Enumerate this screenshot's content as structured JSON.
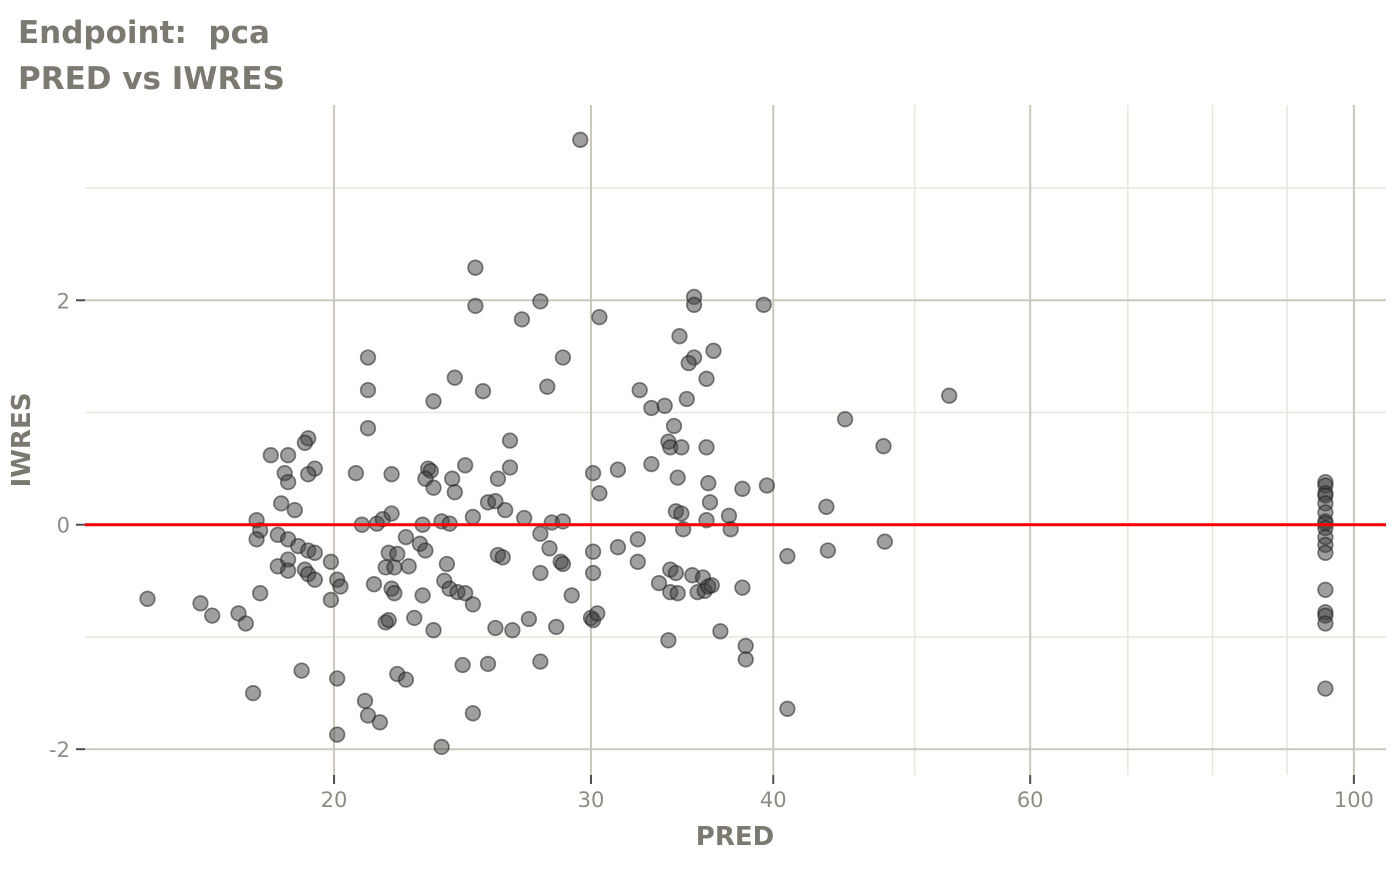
{
  "title": {
    "line1": "Endpoint:  pca",
    "line2": "PRED vs IWRES"
  },
  "colors": {
    "background": "#ffffff",
    "title_text": "#7b7970",
    "axis_title_text": "#7b7970",
    "tick_label_text": "#8e8c84",
    "tick_mark": "#4d4d4d",
    "grid_major": "#cac8bc",
    "grid_minor": "#eae8de",
    "ref_line": "#fa0000",
    "point_fill": "#404040",
    "point_stroke": "#202020"
  },
  "chart_data": {
    "type": "scatter",
    "title": "Endpoint: pca",
    "subtitle": "PRED vs IWRES",
    "xlabel": "PRED",
    "ylabel": "IWRES",
    "x_scale": "log10",
    "x_domain": [
      13.5,
      105.2
    ],
    "y_domain": [
      -2.23,
      3.74
    ],
    "x_major_ticks": [
      20,
      30,
      40,
      60,
      100
    ],
    "x_minor_gridlines": [
      50,
      70,
      80,
      90
    ],
    "y_major_ticks": [
      -2,
      0,
      2
    ],
    "y_minor_gridlines": [
      -1,
      1,
      3
    ],
    "grid": true,
    "legend": "none",
    "reference_line": {
      "y": 0
    },
    "points": [
      [
        25.0,
        2.29
      ],
      [
        25.0,
        1.95
      ],
      [
        26.9,
        1.83
      ],
      [
        21.1,
        1.49
      ],
      [
        24.2,
        1.31
      ],
      [
        21.1,
        1.2
      ],
      [
        25.3,
        1.19
      ],
      [
        23.4,
        1.1
      ],
      [
        21.1,
        0.86
      ],
      [
        19.2,
        0.77
      ],
      [
        26.4,
        0.75
      ],
      [
        29.5,
        3.43
      ],
      [
        27.7,
        1.99
      ],
      [
        35.3,
        2.03
      ],
      [
        35.3,
        1.96
      ],
      [
        39.4,
        1.96
      ],
      [
        30.4,
        1.85
      ],
      [
        34.5,
        1.68
      ],
      [
        36.4,
        1.55
      ],
      [
        35.3,
        1.49
      ],
      [
        35.0,
        1.44
      ],
      [
        28.7,
        1.49
      ],
      [
        28.0,
        1.23
      ],
      [
        32.4,
        1.2
      ],
      [
        36.0,
        1.3
      ],
      [
        52.8,
        1.15
      ],
      [
        44.8,
        0.94
      ],
      [
        33.0,
        1.04
      ],
      [
        33.7,
        1.06
      ],
      [
        34.9,
        1.12
      ],
      [
        34.2,
        0.88
      ],
      [
        19.1,
        0.73
      ],
      [
        18.1,
        0.62
      ],
      [
        18.6,
        0.62
      ],
      [
        19.4,
        0.5
      ],
      [
        19.2,
        0.45
      ],
      [
        18.5,
        0.46
      ],
      [
        18.6,
        0.38
      ],
      [
        20.7,
        0.46
      ],
      [
        21.9,
        0.45
      ],
      [
        23.2,
        0.5
      ],
      [
        23.3,
        0.48
      ],
      [
        23.1,
        0.41
      ],
      [
        23.4,
        0.33
      ],
      [
        24.1,
        0.41
      ],
      [
        24.6,
        0.53
      ],
      [
        24.2,
        0.29
      ],
      [
        25.9,
        0.41
      ],
      [
        26.4,
        0.51
      ],
      [
        25.5,
        0.2
      ],
      [
        25.8,
        0.21
      ],
      [
        24.9,
        0.07
      ],
      [
        26.2,
        0.13
      ],
      [
        18.4,
        0.19
      ],
      [
        18.8,
        0.13
      ],
      [
        17.7,
        0.04
      ],
      [
        17.8,
        -0.05
      ],
      [
        17.7,
        -0.13
      ],
      [
        20.9,
        0.0
      ],
      [
        21.4,
        0.01
      ],
      [
        21.6,
        0.05
      ],
      [
        21.9,
        0.1
      ],
      [
        23.0,
        0.0
      ],
      [
        23.7,
        0.03
      ],
      [
        24.0,
        0.01
      ],
      [
        18.3,
        -0.09
      ],
      [
        18.6,
        -0.13
      ],
      [
        18.9,
        -0.19
      ],
      [
        19.2,
        -0.23
      ],
      [
        19.4,
        -0.25
      ],
      [
        18.6,
        -0.31
      ],
      [
        18.3,
        -0.37
      ],
      [
        18.6,
        -0.41
      ],
      [
        19.1,
        -0.4
      ],
      [
        19.2,
        -0.44
      ],
      [
        19.4,
        -0.49
      ],
      [
        19.9,
        -0.33
      ],
      [
        20.1,
        -0.49
      ],
      [
        20.2,
        -0.55
      ],
      [
        21.3,
        -0.53
      ],
      [
        21.9,
        -0.57
      ],
      [
        22.0,
        -0.61
      ],
      [
        21.7,
        -0.38
      ],
      [
        22.0,
        -0.38
      ],
      [
        22.5,
        -0.37
      ],
      [
        22.4,
        -0.11
      ],
      [
        22.9,
        -0.17
      ],
      [
        23.1,
        -0.23
      ],
      [
        21.8,
        -0.25
      ],
      [
        22.1,
        -0.26
      ],
      [
        23.8,
        -0.5
      ],
      [
        24.0,
        -0.57
      ],
      [
        24.3,
        -0.6
      ],
      [
        24.6,
        -0.61
      ],
      [
        23.0,
        -0.63
      ],
      [
        23.9,
        -0.35
      ],
      [
        24.9,
        -0.71
      ],
      [
        21.7,
        -0.87
      ],
      [
        21.8,
        -0.85
      ],
      [
        22.7,
        -0.83
      ],
      [
        23.4,
        -0.94
      ],
      [
        25.8,
        -0.92
      ],
      [
        26.5,
        -0.94
      ],
      [
        25.9,
        -0.27
      ],
      [
        26.1,
        -0.29
      ],
      [
        14.9,
        -0.66
      ],
      [
        16.2,
        -0.7
      ],
      [
        16.5,
        -0.81
      ],
      [
        17.2,
        -0.79
      ],
      [
        17.4,
        -0.88
      ],
      [
        17.8,
        -0.61
      ],
      [
        19.9,
        -0.67
      ],
      [
        19.0,
        -1.3
      ],
      [
        20.1,
        -1.37
      ],
      [
        17.6,
        -1.5
      ],
      [
        21.0,
        -1.57
      ],
      [
        21.1,
        -1.7
      ],
      [
        21.5,
        -1.76
      ],
      [
        20.1,
        -1.87
      ],
      [
        23.7,
        -1.98
      ],
      [
        22.1,
        -1.33
      ],
      [
        22.4,
        -1.38
      ],
      [
        24.5,
        -1.25
      ],
      [
        25.5,
        -1.24
      ],
      [
        24.9,
        -1.68
      ],
      [
        33.9,
        0.74
      ],
      [
        34.0,
        0.69
      ],
      [
        34.6,
        0.69
      ],
      [
        36.0,
        0.69
      ],
      [
        30.1,
        0.46
      ],
      [
        31.3,
        0.49
      ],
      [
        33.0,
        0.54
      ],
      [
        30.4,
        0.28
      ],
      [
        34.4,
        0.42
      ],
      [
        36.1,
        0.37
      ],
      [
        38.1,
        0.32
      ],
      [
        39.6,
        0.35
      ],
      [
        36.2,
        0.2
      ],
      [
        34.3,
        0.12
      ],
      [
        34.6,
        0.1
      ],
      [
        36.0,
        0.04
      ],
      [
        37.3,
        0.08
      ],
      [
        37.4,
        -0.04
      ],
      [
        34.7,
        -0.04
      ],
      [
        43.5,
        0.16
      ],
      [
        47.6,
        0.7
      ],
      [
        47.7,
        -0.15
      ],
      [
        40.9,
        -0.28
      ],
      [
        43.6,
        -0.23
      ],
      [
        28.1,
        -0.21
      ],
      [
        27.7,
        -0.08
      ],
      [
        28.2,
        0.02
      ],
      [
        28.7,
        0.03
      ],
      [
        27.0,
        0.06
      ],
      [
        28.6,
        -0.33
      ],
      [
        28.7,
        -0.35
      ],
      [
        27.7,
        -0.43
      ],
      [
        29.1,
        -0.63
      ],
      [
        30.1,
        -0.24
      ],
      [
        30.1,
        -0.43
      ],
      [
        31.3,
        -0.2
      ],
      [
        32.3,
        -0.13
      ],
      [
        32.3,
        -0.33
      ],
      [
        33.4,
        -0.52
      ],
      [
        34.0,
        -0.4
      ],
      [
        34.3,
        -0.43
      ],
      [
        34.0,
        -0.6
      ],
      [
        34.4,
        -0.61
      ],
      [
        35.2,
        -0.45
      ],
      [
        35.5,
        -0.6
      ],
      [
        35.8,
        -0.47
      ],
      [
        35.9,
        -0.59
      ],
      [
        36.1,
        -0.55
      ],
      [
        36.3,
        -0.54
      ],
      [
        38.1,
        -0.56
      ],
      [
        36.8,
        -0.95
      ],
      [
        33.9,
        -1.03
      ],
      [
        38.3,
        -1.08
      ],
      [
        38.3,
        -1.2
      ],
      [
        27.7,
        -1.22
      ],
      [
        40.9,
        -1.64
      ],
      [
        27.2,
        -0.84
      ],
      [
        28.4,
        -0.91
      ],
      [
        30.0,
        -0.83
      ],
      [
        30.1,
        -0.85
      ],
      [
        30.3,
        -0.79
      ],
      [
        95.6,
        0.38
      ],
      [
        95.6,
        0.35
      ],
      [
        95.6,
        0.28
      ],
      [
        95.6,
        0.26
      ],
      [
        95.6,
        0.19
      ],
      [
        95.6,
        0.11
      ],
      [
        95.6,
        0.03
      ],
      [
        95.6,
        0.01
      ],
      [
        95.6,
        -0.03
      ],
      [
        95.6,
        -0.11
      ],
      [
        95.6,
        -0.18
      ],
      [
        95.6,
        -0.25
      ],
      [
        95.6,
        -0.58
      ],
      [
        95.6,
        -0.78
      ],
      [
        95.6,
        -0.81
      ],
      [
        95.6,
        -0.88
      ],
      [
        95.6,
        -1.46
      ]
    ]
  }
}
